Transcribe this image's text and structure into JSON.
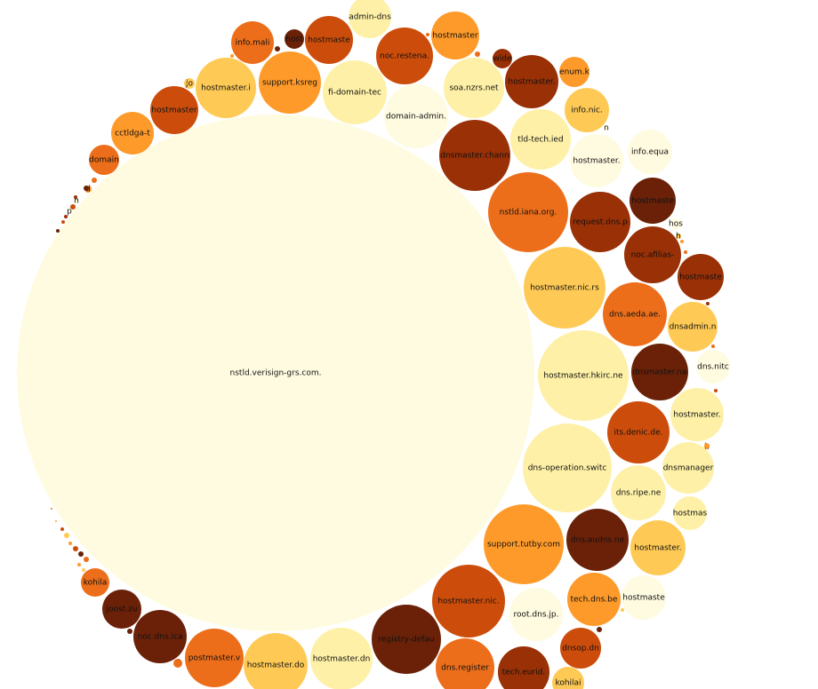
{
  "chart_data": {
    "type": "bubble",
    "title": "",
    "color_scale": [
      "#fffbe0",
      "#fef0a6",
      "#feca55",
      "#fe9a2a",
      "#ec6e1a",
      "#cc4d0b",
      "#993006",
      "#6a2108"
    ],
    "bubbles": [
      {
        "label": "nstld.verisign-grs.com.",
        "value": 1000,
        "color_level": 0
      },
      {
        "label": "admin-dns",
        "value": 7,
        "color_level": 1
      },
      {
        "label": "hostmaster",
        "value": 10,
        "color_level": 3
      },
      {
        "label": "info.mali",
        "value": 7,
        "color_level": 4
      },
      {
        "label": "host",
        "value": 2,
        "color_level": 7
      },
      {
        "label": "hostmaste",
        "value": 9,
        "color_level": 5
      },
      {
        "label": "noc.restena.",
        "value": 13,
        "color_level": 5
      },
      {
        "label": "support.ksreg",
        "value": 16,
        "color_level": 3
      },
      {
        "label": "hostmaster.i",
        "value": 15,
        "color_level": 2
      },
      {
        "label": "fi-domain-tec",
        "value": 17,
        "color_level": 1
      },
      {
        "label": "soa.nzrs.net",
        "value": 15,
        "color_level": 1
      },
      {
        "label": "hostmaster.",
        "value": 11,
        "color_level": 6
      },
      {
        "label": "wide",
        "value": 2,
        "color_level": 6
      },
      {
        "label": "enum.k",
        "value": 4,
        "color_level": 3
      },
      {
        "label": "hostmaster",
        "value": 9,
        "color_level": 5
      },
      {
        "label": "domain-admin.",
        "value": 16,
        "color_level": 0
      },
      {
        "label": "info.nic.",
        "value": 7,
        "color_level": 2
      },
      {
        "label": "cctldga-t",
        "value": 7,
        "color_level": 3
      },
      {
        "label": "tld-tech.ied",
        "value": 14,
        "color_level": 1
      },
      {
        "label": "dnsmaster.chann",
        "value": 20,
        "color_level": 6
      },
      {
        "label": "hostmaster.",
        "value": 11,
        "color_level": 0
      },
      {
        "label": "info.equa",
        "value": 7,
        "color_level": 0
      },
      {
        "label": "domain",
        "value": 4,
        "color_level": 4
      },
      {
        "label": "hostmaste",
        "value": 8,
        "color_level": 7
      },
      {
        "label": "nstld.iana.org.",
        "value": 25,
        "color_level": 4
      },
      {
        "label": "request.dns.p",
        "value": 14,
        "color_level": 6
      },
      {
        "label": "hos",
        "value": 2,
        "color_level": 0
      },
      {
        "label": "noc.afilias-",
        "value": 13,
        "color_level": 6
      },
      {
        "label": "hostmaste",
        "value": 8,
        "color_level": 6
      },
      {
        "label": "hostmaster.nic.rs",
        "value": 26,
        "color_level": 2
      },
      {
        "label": "dns.aeda.ae.",
        "value": 16,
        "color_level": 4
      },
      {
        "label": "dnsadmin.n",
        "value": 9,
        "color_level": 2
      },
      {
        "label": "hostmaster.hkirc.ne",
        "value": 32,
        "color_level": 1
      },
      {
        "label": "dnsmaster.na",
        "value": 12,
        "color_level": 7
      },
      {
        "label": "dns.nitc",
        "value": 6,
        "color_level": 0
      },
      {
        "label": "hostmaster.",
        "value": 11,
        "color_level": 1
      },
      {
        "label": "its.denic.de.",
        "value": 15,
        "color_level": 5
      },
      {
        "label": "dns-operation.switc",
        "value": 31,
        "color_level": 1
      },
      {
        "label": "dnsmanager",
        "value": 9,
        "color_level": 1
      },
      {
        "label": "dns.ripe.ne",
        "value": 12,
        "color_level": 1
      },
      {
        "label": "hostmas",
        "value": 5,
        "color_level": 1
      },
      {
        "label": "support.tutby.com",
        "value": 25,
        "color_level": 3
      },
      {
        "label": "dns.audns.ne",
        "value": 14,
        "color_level": 7
      },
      {
        "label": "hostmaster.",
        "value": 11,
        "color_level": 2
      },
      {
        "label": "tech.dns.be",
        "value": 11,
        "color_level": 3
      },
      {
        "label": "hostmaste",
        "value": 8,
        "color_level": 0
      },
      {
        "label": "hostmaster.nic.",
        "value": 21,
        "color_level": 5
      },
      {
        "label": "root.dns.jp.",
        "value": 12,
        "color_level": 0
      },
      {
        "label": "dnsop.dn",
        "value": 7,
        "color_level": 5
      },
      {
        "label": "kohila",
        "value": 3,
        "color_level": 4
      },
      {
        "label": "joost.zu",
        "value": 6,
        "color_level": 7
      },
      {
        "label": "noc.dns.ica",
        "value": 10,
        "color_level": 7
      },
      {
        "label": "postmaster.v",
        "value": 13,
        "color_level": 4
      },
      {
        "label": "hostmaster.do",
        "value": 14,
        "color_level": 2
      },
      {
        "label": "hostmaster.dn",
        "value": 15,
        "color_level": 1
      },
      {
        "label": "registry-defau",
        "value": 18,
        "color_level": 7
      },
      {
        "label": "dns.register",
        "value": 13,
        "color_level": 4
      },
      {
        "label": "tech.eurid.",
        "value": 10,
        "color_level": 6
      },
      {
        "label": "kohilai",
        "value": 3,
        "color_level": 2
      },
      {
        "label": "jo",
        "value": 1,
        "color_level": 2
      },
      {
        "label": "p",
        "value": 0.3,
        "color_level": 0
      },
      {
        "label": "h",
        "value": 0.3,
        "color_level": 0
      },
      {
        "label": "d",
        "value": 0.4,
        "color_level": 3
      },
      {
        "label": "n",
        "value": 0.3,
        "color_level": 0
      },
      {
        "label": "h",
        "value": 0.3,
        "color_level": 2
      },
      {
        "label": "h",
        "value": 0.3,
        "color_level": 3
      },
      {
        "label": "ti",
        "value": 0.4,
        "color_level": 4
      }
    ]
  }
}
